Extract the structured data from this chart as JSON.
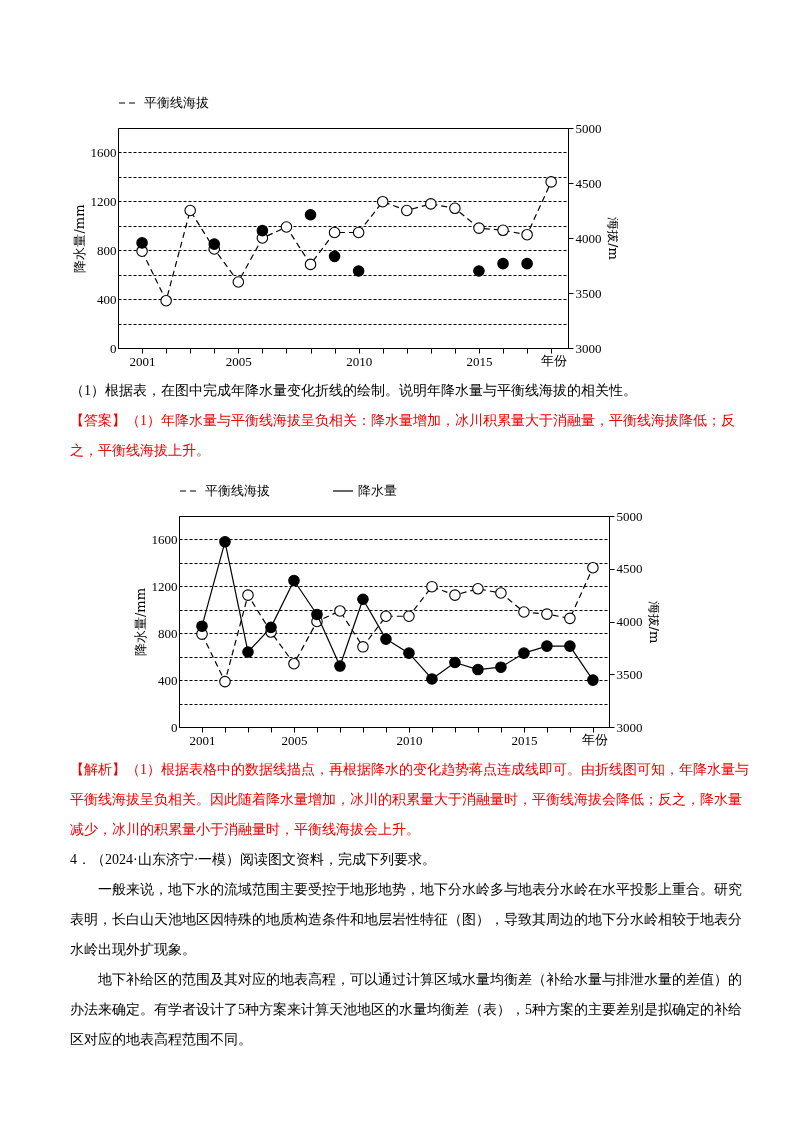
{
  "chart_data": [
    {
      "type": "line",
      "xlabel": "年份",
      "ylabel": "降水量/mm",
      "y2label": "海拔/m",
      "legend": "top",
      "grid": "y",
      "marker": "circle",
      "x": [
        2001,
        2002,
        2003,
        2004,
        2005,
        2006,
        2007,
        2008,
        2009,
        2010,
        2011,
        2012,
        2013,
        2014,
        2015,
        2016,
        2017,
        2018
      ],
      "xlim": [
        2000,
        2018.7
      ],
      "xticks": [
        2001,
        {
          "value": 2002,
          "label": null
        },
        {
          "value": 2003,
          "label": null
        },
        {
          "value": 2004,
          "label": null
        },
        2005,
        {
          "value": 2006,
          "label": null
        },
        {
          "value": 2007,
          "label": null
        },
        {
          "value": 2008,
          "label": null
        },
        {
          "value": 2009,
          "label": null
        },
        2010,
        {
          "value": 2011,
          "label": null
        },
        {
          "value": 2012,
          "label": null
        },
        {
          "value": 2013,
          "label": null
        },
        {
          "value": 2014,
          "label": null
        },
        2015,
        {
          "value": 2016,
          "label": null
        },
        {
          "value": 2017,
          "label": null
        },
        {
          "value": 2018,
          "label": null
        }
      ],
      "ylim": [
        0,
        1800
      ],
      "yticks": [
        0,
        {
          "value": 200,
          "label": null
        },
        400,
        {
          "value": 600,
          "label": null
        },
        800,
        {
          "value": 1000,
          "label": null
        },
        1200,
        {
          "value": 1400,
          "label": null
        },
        1600
      ],
      "y2lim": [
        3000,
        5000
      ],
      "y2ticks": [
        3000,
        3500,
        4000,
        4500,
        5000
      ],
      "series": [
        {
          "name": "平衡线海拔",
          "type": "line",
          "axis": "y2",
          "line_style": "dashed",
          "color": "#000000",
          "values": [
            3880,
            3430,
            4250,
            3900,
            3600,
            4000,
            4100,
            3760,
            4050,
            4050,
            4330,
            4250,
            4310,
            4270,
            4090,
            4070,
            4030,
            4510
          ]
        },
        {
          "type": "scatter",
          "axis": "y",
          "color": "#000000",
          "x": [
            2001,
            2004,
            2006,
            2008,
            2009,
            2010,
            2015,
            2016,
            2017
          ],
          "values": [
            860,
            850,
            960,
            1090,
            750,
            630,
            630,
            690,
            690
          ]
        }
      ],
      "annotations": [
        "（1）根据表，在图中完成年降水量变化折线的绘制。说明年降水量与平衡线海拔的相关性。",
        "【答案】（1）年降水量与平衡线海拔呈负相关：降水量增加，冰川积累量大于消融量，平衡线海拔降低；反之，平衡线海拔上升。"
      ]
    },
    {
      "type": "line",
      "xlabel": "年份",
      "ylabel": "降水量/mm",
      "y2label": "海拔/m",
      "legend": "top",
      "grid": "y",
      "marker": "circle",
      "x": [
        2001,
        2002,
        2003,
        2004,
        2005,
        2006,
        2007,
        2008,
        2009,
        2010,
        2011,
        2012,
        2013,
        2014,
        2015,
        2016,
        2017,
        2018
      ],
      "xlim": [
        2000,
        2018.7
      ],
      "xticks": [
        2001,
        {
          "value": 2002,
          "label": null
        },
        {
          "value": 2003,
          "label": null
        },
        {
          "value": 2004,
          "label": null
        },
        2005,
        {
          "value": 2006,
          "label": null
        },
        {
          "value": 2007,
          "label": null
        },
        {
          "value": 2008,
          "label": null
        },
        {
          "value": 2009,
          "label": null
        },
        2010,
        {
          "value": 2011,
          "label": null
        },
        {
          "value": 2012,
          "label": null
        },
        {
          "value": 2013,
          "label": null
        },
        {
          "value": 2014,
          "label": null
        },
        2015,
        {
          "value": 2016,
          "label": null
        },
        {
          "value": 2017,
          "label": null
        },
        {
          "value": 2018,
          "label": null
        }
      ],
      "ylim": [
        0,
        1800
      ],
      "yticks": [
        0,
        {
          "value": 200,
          "label": null
        },
        400,
        {
          "value": 600,
          "label": null
        },
        800,
        {
          "value": 1000,
          "label": null
        },
        1200,
        {
          "value": 1400,
          "label": null
        },
        1600
      ],
      "y2lim": [
        3000,
        5000
      ],
      "y2ticks": [
        3000,
        3500,
        4000,
        4500,
        5000
      ],
      "series": [
        {
          "name": "平衡线海拔",
          "type": "line",
          "axis": "y2",
          "line_style": "dashed",
          "color": "#000000",
          "values": [
            3880,
            3430,
            4250,
            3900,
            3600,
            4000,
            4100,
            3760,
            4050,
            4050,
            4330,
            4250,
            4310,
            4270,
            4090,
            4070,
            4030,
            4510
          ]
        },
        {
          "name": "降水量",
          "type": "line",
          "axis": "y",
          "line_style": "solid",
          "color": "#000000",
          "values": [
            860,
            1580,
            640,
            850,
            1250,
            960,
            520,
            1090,
            750,
            630,
            410,
            550,
            490,
            510,
            630,
            690,
            690,
            400
          ]
        }
      ],
      "annotations": [
        "【解析】（1）根据表格中的数据线描点，再根据降水的变化趋势蒋点连成线即可。由折线图可知，年降水量与平衡线海拔呈负相关。因此随着降水量增加，冰川的积累量大于消融量时，平衡线海拔会降低；反之，降水量减少，冰川的积累量小于消融量时，平衡线海拔会上升。",
        "4．（2024·山东济宁·一模）阅读图文资料，完成下列要求。",
        "一般来说，地下水的流域范围主要受控于地形地势，地下分水岭多与地表分水岭在水平投影上重合。研究表明，长白山天池地区因特殊的地质构造条件和地层岩性特征（图），导致其周边的地下分水岭相较于地表分水岭出现外扩现象。",
        "地下补给区的范围及其对应的地表高程，可以通过计算区域水量均衡差（补给水量与排泄水量的差值）的办法来确定。有学者设计了5种方案来计算天池地区的水量均衡差（表），5种方案的主要差别是拟确定的补给区对应的地表高程范围不同。"
      ]
    }
  ]
}
